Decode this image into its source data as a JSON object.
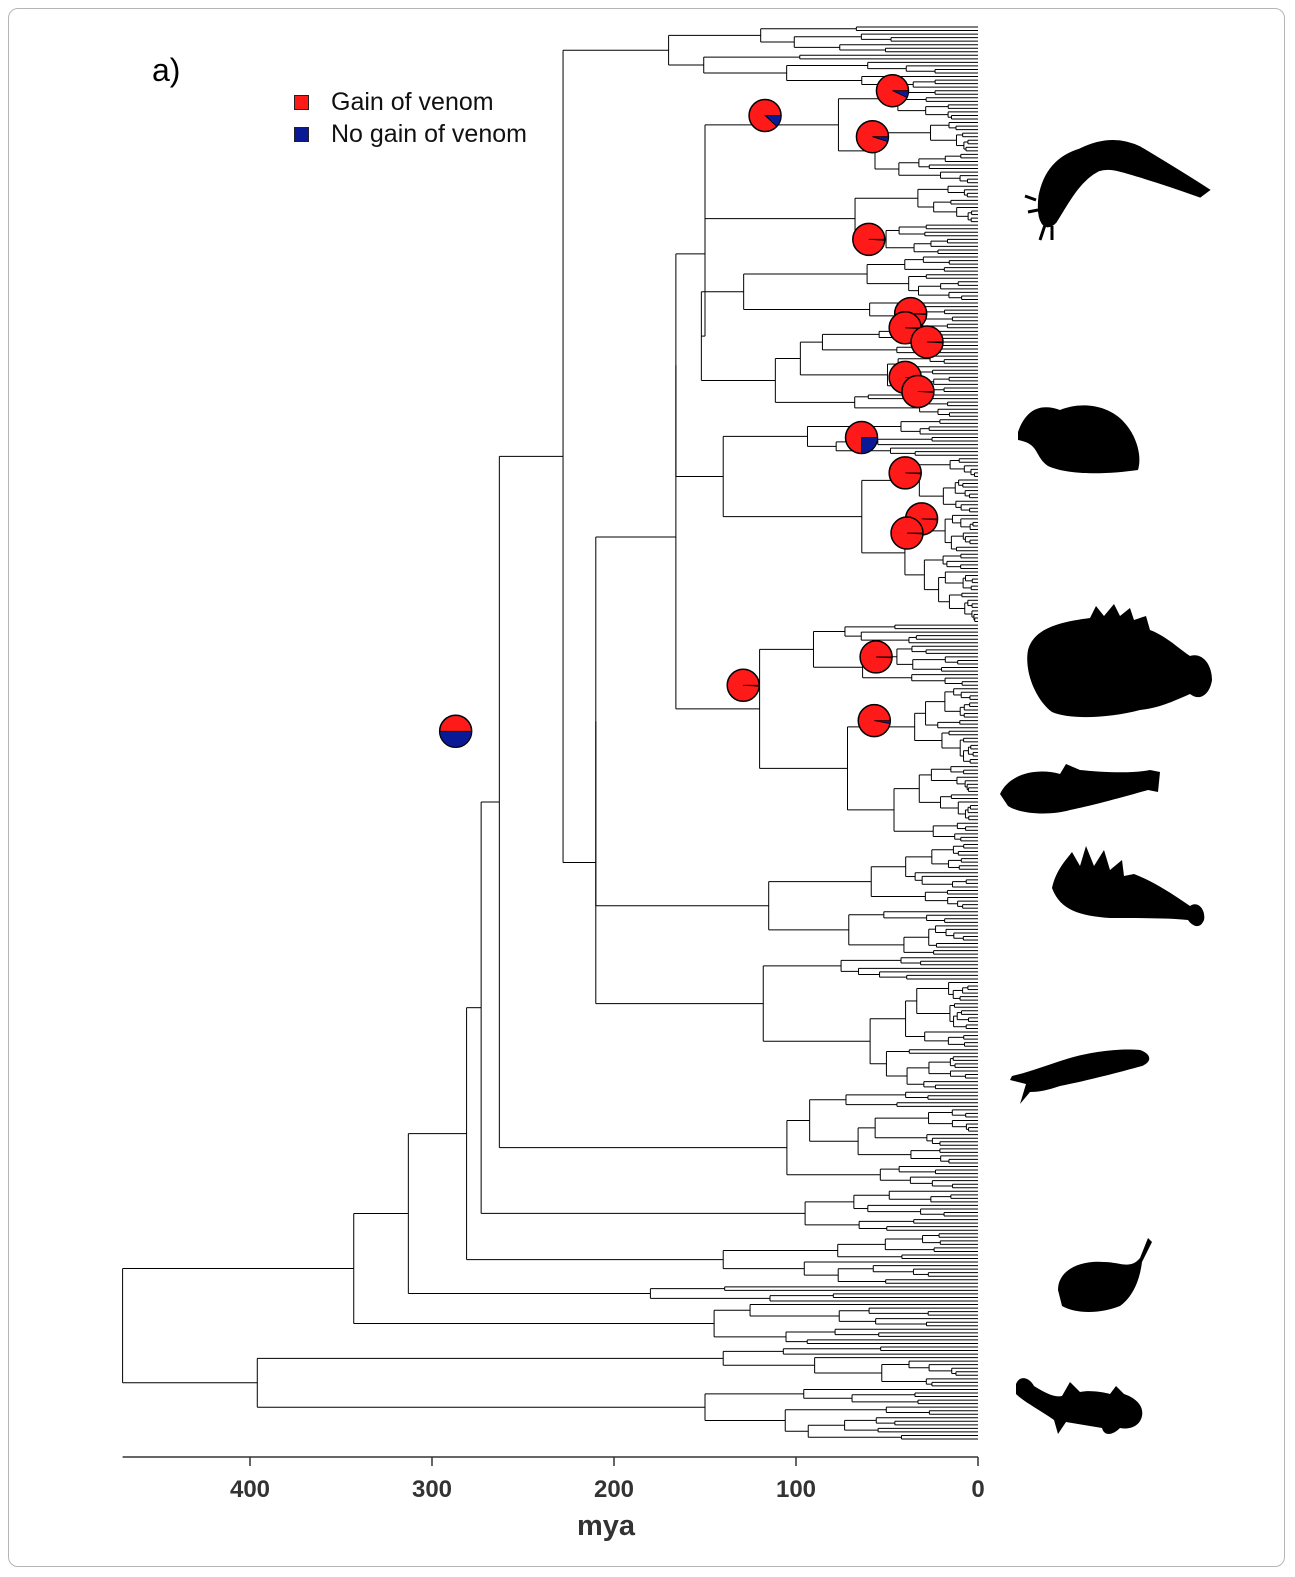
{
  "panel_label": "a)",
  "legend": [
    {
      "label": "Gain of venom",
      "color": "#ff1a1a"
    },
    {
      "label": "No gain of venom",
      "color": "#0a1a96"
    }
  ],
  "chart_data": {
    "type": "tree",
    "title": "",
    "xlabel": "mya",
    "ylabel": "",
    "xlim": [
      470,
      0
    ],
    "x_reversed": true,
    "ticks": [
      {
        "value": 400,
        "label": "400"
      },
      {
        "value": 300,
        "label": "300"
      },
      {
        "value": 200,
        "label": "200"
      },
      {
        "value": 100,
        "label": "100"
      },
      {
        "value": 0,
        "label": "0"
      }
    ],
    "colors": {
      "gain": "#ff1a1a",
      "no_gain": "#0a1a96",
      "tree": "#000000"
    },
    "backbone_nodes_mya": [
      470,
      383,
      396,
      343,
      313,
      281,
      273,
      263,
      228,
      210,
      166,
      150
    ],
    "venom_gain_nodes": [
      {
        "mya": 47,
        "p_gain": 0.93
      },
      {
        "mya": 117,
        "p_gain": 0.88
      },
      {
        "mya": 58,
        "p_gain": 0.95
      },
      {
        "mya": 60,
        "p_gain": 0.99
      },
      {
        "mya": 37,
        "p_gain": 0.99
      },
      {
        "mya": 40,
        "p_gain": 0.99
      },
      {
        "mya": 28,
        "p_gain": 0.99
      },
      {
        "mya": 40,
        "p_gain": 0.99
      },
      {
        "mya": 33,
        "p_gain": 0.99
      },
      {
        "mya": 64,
        "p_gain": 0.75
      },
      {
        "mya": 40,
        "p_gain": 0.99
      },
      {
        "mya": 31,
        "p_gain": 0.99
      },
      {
        "mya": 39,
        "p_gain": 0.99
      },
      {
        "mya": 56,
        "p_gain": 0.99
      },
      {
        "mya": 129,
        "p_gain": 0.99
      },
      {
        "mya": 57,
        "p_gain": 0.97
      },
      {
        "mya": 287,
        "p_gain": 0.5
      }
    ],
    "silhouettes": [
      "catfish-silhouette",
      "rabbitfish-silhouette",
      "scorpionfish-silhouette",
      "stargazer-silhouette",
      "lionfish-silhouette",
      "chimaera-silhouette",
      "stingray-silhouette",
      "horn-shark-silhouette"
    ]
  }
}
